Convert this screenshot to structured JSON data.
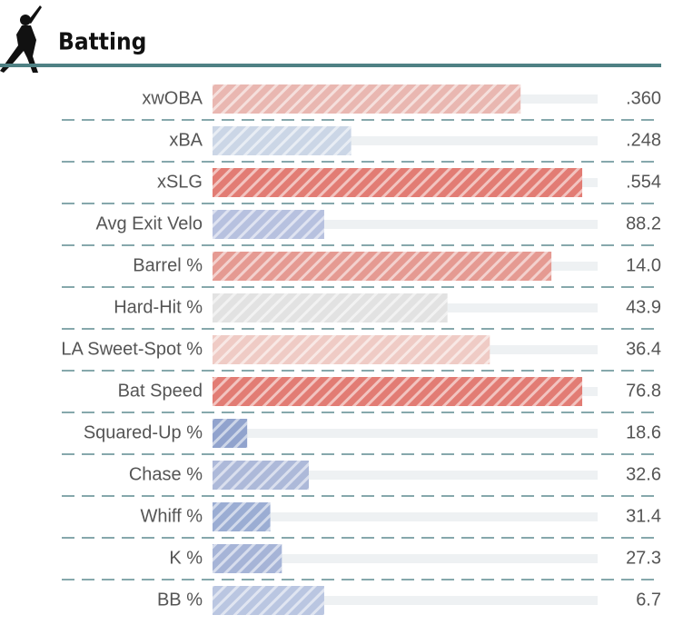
{
  "header": {
    "title": "Batting"
  },
  "track_color": "#eef1f3",
  "rows": [
    {
      "label": "xwOBA",
      "value": ".360",
      "percentile": 80,
      "color": "#e9b7b1"
    },
    {
      "label": "xBA",
      "value": ".248",
      "percentile": 36,
      "color": "#cbd6e6"
    },
    {
      "label": "xSLG",
      "value": ".554",
      "percentile": 96,
      "color": "#e27c74"
    },
    {
      "label": "Avg Exit Velo",
      "value": "88.2",
      "percentile": 29,
      "color": "#b7c1df"
    },
    {
      "label": "Barrel %",
      "value": "14.0",
      "percentile": 88,
      "color": "#e59a92"
    },
    {
      "label": "Hard-Hit %",
      "value": "43.9",
      "percentile": 61,
      "color": "#e2e2e2"
    },
    {
      "label": "LA Sweet-Spot %",
      "value": "36.4",
      "percentile": 72,
      "color": "#efcbc5"
    },
    {
      "label": "Bat Speed",
      "value": "76.8",
      "percentile": 96,
      "color": "#e27c74"
    },
    {
      "label": "Squared-Up %",
      "value": "18.6",
      "percentile": 9,
      "color": "#91a3cd"
    },
    {
      "label": "Chase %",
      "value": "32.6",
      "percentile": 25,
      "color": "#adb9d9"
    },
    {
      "label": "Whiff %",
      "value": "31.4",
      "percentile": 15,
      "color": "#9badd3"
    },
    {
      "label": "K %",
      "value": "27.3",
      "percentile": 18,
      "color": "#a6b4d7"
    },
    {
      "label": "BB %",
      "value": "6.7",
      "percentile": 29,
      "color": "#bac6e1"
    }
  ]
}
